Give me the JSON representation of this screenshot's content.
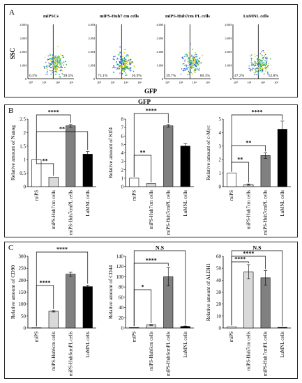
{
  "panels": {
    "A": {
      "label": "A",
      "yaxis_label": "SSC",
      "xaxis_label": "GFP",
      "gfp_center_label": "GFP",
      "y_ticks": [
        "4.0M",
        "3.0M",
        "2.0M",
        "1.0M",
        "0"
      ],
      "x_ticks": [
        "10⁰",
        "10²",
        "10⁴",
        "10⁶"
      ],
      "plots": [
        {
          "title": "miPSCs",
          "left_pct": "0.5%",
          "right_pct": "99.5%"
        },
        {
          "title": "miPS-Huh7 cm cells",
          "left_pct": "73.1%",
          "right_pct": "26.9%"
        },
        {
          "title": "miPS-Huh7cm PL cells",
          "left_pct": "39.7%",
          "right_pct": "60.3%"
        },
        {
          "title": "LuMNL cells",
          "left_pct": "47.2%",
          "right_pct": "52.8%"
        }
      ]
    },
    "B": {
      "label": "B"
    },
    "C": {
      "label": "C"
    }
  },
  "colors": {
    "bar_white": "#ffffff",
    "bar_light": "#d9d9d9",
    "bar_dark": "#808080",
    "bar_black": "#000000",
    "dots_blue": "#2a5bd7",
    "dots_cyan": "#27b4c8",
    "dots_green": "#46b83c",
    "dots_yellow": "#e8d234",
    "dots_red": "#d8352a"
  },
  "chart_data": [
    {
      "type": "bar",
      "title": "",
      "ylabel": "Relative amount of Nanog",
      "categories": [
        "miPS",
        "miPS-Huh7cm cells",
        "miPS-Huh7cmPL cells",
        "LuMNL cells"
      ],
      "values": [
        1.0,
        0.35,
        2.25,
        1.2
      ],
      "errors": [
        0,
        0,
        0.05,
        0.1
      ],
      "ylim": [
        0,
        2.5
      ],
      "yticks": [
        "0",
        "0.5",
        "1",
        "1.5",
        "2",
        "2.5"
      ],
      "significance": [
        {
          "from": 0,
          "to": 1,
          "label": "**"
        },
        {
          "from": 0,
          "to": 2,
          "label": "****"
        },
        {
          "from": 0,
          "to": 3,
          "label": "**"
        }
      ]
    },
    {
      "type": "bar",
      "title": "",
      "ylabel": "Relative amount of Klf4",
      "categories": [
        "miPS",
        "miPS-Huh7cm cells",
        "miPS-Huh7cmPL cells",
        "LuMNL cells"
      ],
      "values": [
        1.0,
        0.35,
        7.2,
        4.8
      ],
      "errors": [
        0,
        0,
        0.15,
        0.3
      ],
      "ylim": [
        0,
        8
      ],
      "yticks": [
        "0",
        "1",
        "2",
        "3",
        "4",
        "5",
        "6",
        "7",
        "8"
      ],
      "significance": [
        {
          "from": 0,
          "to": 1,
          "label": "**"
        },
        {
          "from": 0,
          "to": 2,
          "label": "****"
        }
      ]
    },
    {
      "type": "bar",
      "title": "",
      "ylabel": "Relative amount of c-Myc",
      "categories": [
        "miPS",
        "miPS-Huh7cm cells",
        "miPS-Huh7cmPL cells",
        "LuMNL cells"
      ],
      "values": [
        1.0,
        0.15,
        2.3,
        4.25
      ],
      "errors": [
        0,
        0.05,
        0.2,
        0.6
      ],
      "ylim": [
        0,
        5
      ],
      "yticks": [
        "0",
        "1",
        "2",
        "3",
        "4",
        "5"
      ],
      "significance": [
        {
          "from": 0,
          "to": 1,
          "label": "**"
        },
        {
          "from": 0,
          "to": 2,
          "label": "**"
        },
        {
          "from": 0,
          "to": 3,
          "label": "****"
        }
      ]
    },
    {
      "type": "bar",
      "title": "",
      "ylabel": "Relative amount of CD90",
      "categories": [
        "miPS",
        "miPS-Huh6cm cells",
        "miPS-Huh6cmPL cells",
        "LuMNL cells"
      ],
      "values": [
        1,
        70,
        225,
        173
      ],
      "errors": [
        0,
        3,
        8,
        6
      ],
      "ylim": [
        0,
        300
      ],
      "yticks": [
        "0",
        "50",
        "100",
        "150",
        "200",
        "250",
        "300"
      ],
      "significance": [
        {
          "from": 0,
          "to": 1,
          "label": "****"
        },
        {
          "from": 0,
          "to": 3,
          "label": "****"
        }
      ]
    },
    {
      "type": "bar",
      "title": "",
      "ylabel": "Relative amount of CD44",
      "categories": [
        "miPS",
        "miPS-Huh6cm cells",
        "miPS-Huh6cmPL cells",
        "LuMNL cells"
      ],
      "values": [
        1,
        6,
        100,
        3
      ],
      "errors": [
        0,
        1,
        18,
        1
      ],
      "ylim": [
        0,
        140
      ],
      "yticks": [
        "0",
        "20",
        "40",
        "60",
        "80",
        "100",
        "120",
        "140"
      ],
      "significance": [
        {
          "from": 0,
          "to": 1,
          "label": "*"
        },
        {
          "from": 0,
          "to": 2,
          "label": "****"
        },
        {
          "from": 0,
          "to": 3,
          "label": "N.S"
        }
      ]
    },
    {
      "type": "bar",
      "title": "",
      "ylabel": "Relative amount of ALDH1",
      "categories": [
        "miPS",
        "miPS-Huh7cm cells",
        "miPS-Huh7cmPL cells",
        "LuMNL cells"
      ],
      "values": [
        1,
        47,
        42,
        0.5
      ],
      "errors": [
        0,
        6,
        6,
        0
      ],
      "ylim": [
        0,
        60
      ],
      "yticks": [
        "0",
        "10",
        "20",
        "30",
        "40",
        "50",
        "60"
      ],
      "significance": [
        {
          "from": 0,
          "to": 1,
          "label": "****"
        },
        {
          "from": 0,
          "to": 2,
          "label": "****"
        },
        {
          "from": 0,
          "to": 3,
          "label": "N.S"
        }
      ]
    }
  ]
}
